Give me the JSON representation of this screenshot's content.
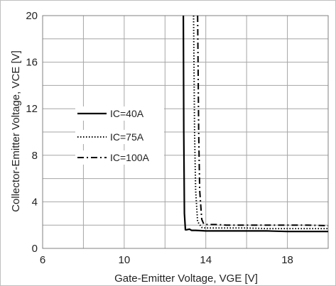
{
  "chart_data": {
    "type": "line",
    "title": "",
    "xlabel": "Gate-Emitter Voltage, VGE [V]",
    "ylabel": "Collector-Emitter Voltage, VCE [V]",
    "xlim": [
      6,
      20
    ],
    "ylim": [
      0,
      20
    ],
    "x_ticks": [
      "6",
      "10",
      "14",
      "18"
    ],
    "y_ticks": [
      "0",
      "4",
      "8",
      "12",
      "16",
      "20"
    ],
    "grid": true,
    "legend_position": "left",
    "series": [
      {
        "name": "IC=40A",
        "style": "solid",
        "color": "#000000",
        "x": [
          12.9,
          12.92,
          12.95,
          13.0,
          13.05,
          13.2,
          13.3,
          13.5,
          14.0,
          15.0,
          16.0,
          17.0,
          18.0,
          19.0,
          20.0
        ],
        "y": [
          20.0,
          10.0,
          3.0,
          1.6,
          1.6,
          1.65,
          1.55,
          1.55,
          1.5,
          1.5,
          1.5,
          1.5,
          1.45,
          1.45,
          1.45
        ]
      },
      {
        "name": "IC=75A",
        "style": "dotted",
        "color": "#000000",
        "x": [
          13.4,
          13.45,
          13.5,
          13.6,
          13.8,
          14.0,
          14.5,
          15.0,
          16.0,
          17.0,
          18.0,
          19.0,
          20.0
        ],
        "y": [
          20.0,
          10.0,
          5.0,
          2.3,
          1.8,
          1.75,
          1.75,
          1.75,
          1.75,
          1.7,
          1.7,
          1.7,
          1.7
        ]
      },
      {
        "name": "IC=100A",
        "style": "dashdot",
        "color": "#000000",
        "x": [
          13.6,
          13.65,
          13.7,
          13.8,
          13.9,
          14.0,
          14.5,
          15.0,
          16.0,
          17.0,
          18.0,
          19.0,
          20.0
        ],
        "y": [
          20.0,
          10.0,
          5.0,
          2.5,
          2.1,
          2.05,
          2.05,
          2.0,
          2.0,
          2.0,
          2.0,
          2.0,
          1.95
        ]
      }
    ]
  }
}
